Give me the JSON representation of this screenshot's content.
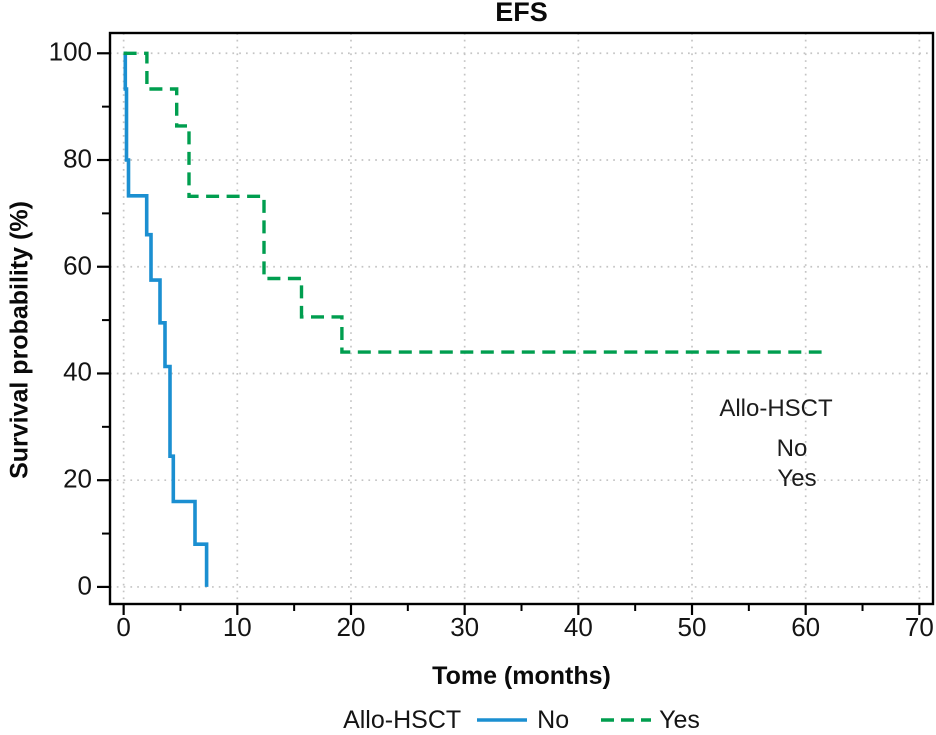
{
  "title": "EFS",
  "chart_data": {
    "type": "line",
    "subtype": "kaplan-meier-step-survival",
    "title": "EFS",
    "xlabel": "Tome (months)",
    "ylabel": "Survival probability (%)",
    "xlim": [
      -1.2,
      71.2
    ],
    "ylim": [
      -3.2,
      103.8
    ],
    "xticks": [
      0,
      10,
      20,
      30,
      40,
      50,
      60,
      70
    ],
    "yticks": [
      0,
      20,
      40,
      60,
      80,
      100
    ],
    "xminorticks": [
      5,
      15,
      25,
      35,
      45,
      55,
      65
    ],
    "yminorticks": [
      10,
      30,
      50,
      70,
      90
    ],
    "grid": "dotted at major ticks, both axes",
    "legend_position": "bottom-center",
    "series": [
      {
        "name": "No",
        "color": "#1b8fd1",
        "dash": "solid",
        "start": [
          0,
          100
        ],
        "events": [
          [
            0.15,
            93.3
          ],
          [
            0.25,
            80
          ],
          [
            0.43,
            73.3
          ],
          [
            2.03,
            66
          ],
          [
            2.41,
            57.5
          ],
          [
            3.2,
            49.5
          ],
          [
            3.64,
            41.3
          ],
          [
            4.08,
            24.5
          ],
          [
            4.37,
            16
          ],
          [
            6.28,
            8
          ],
          [
            7.3,
            0
          ]
        ],
        "end_time": 7.3
      },
      {
        "name": "Yes",
        "color": "#009e4f",
        "dash": "dashed",
        "start": [
          0,
          100
        ],
        "events": [
          [
            2.05,
            93.3
          ],
          [
            4.67,
            86.4
          ],
          [
            5.75,
            73.2
          ],
          [
            12.35,
            57.8
          ],
          [
            15.65,
            50.6
          ],
          [
            19.2,
            44
          ]
        ],
        "end_time": 61.4
      }
    ],
    "annotation": {
      "title": "Allo-HSCT",
      "items": [
        "No",
        "Yes"
      ]
    },
    "legend": {
      "group_label": "Allo-HSCT",
      "entries": [
        {
          "label": "No",
          "style": "solid-blue"
        },
        {
          "label": "Yes",
          "style": "dashed-green"
        }
      ]
    }
  },
  "colors": {
    "no_line": "#1b8fd1",
    "yes_line": "#009e4f",
    "grid": "#c4c4c4",
    "axis": "#000000"
  }
}
